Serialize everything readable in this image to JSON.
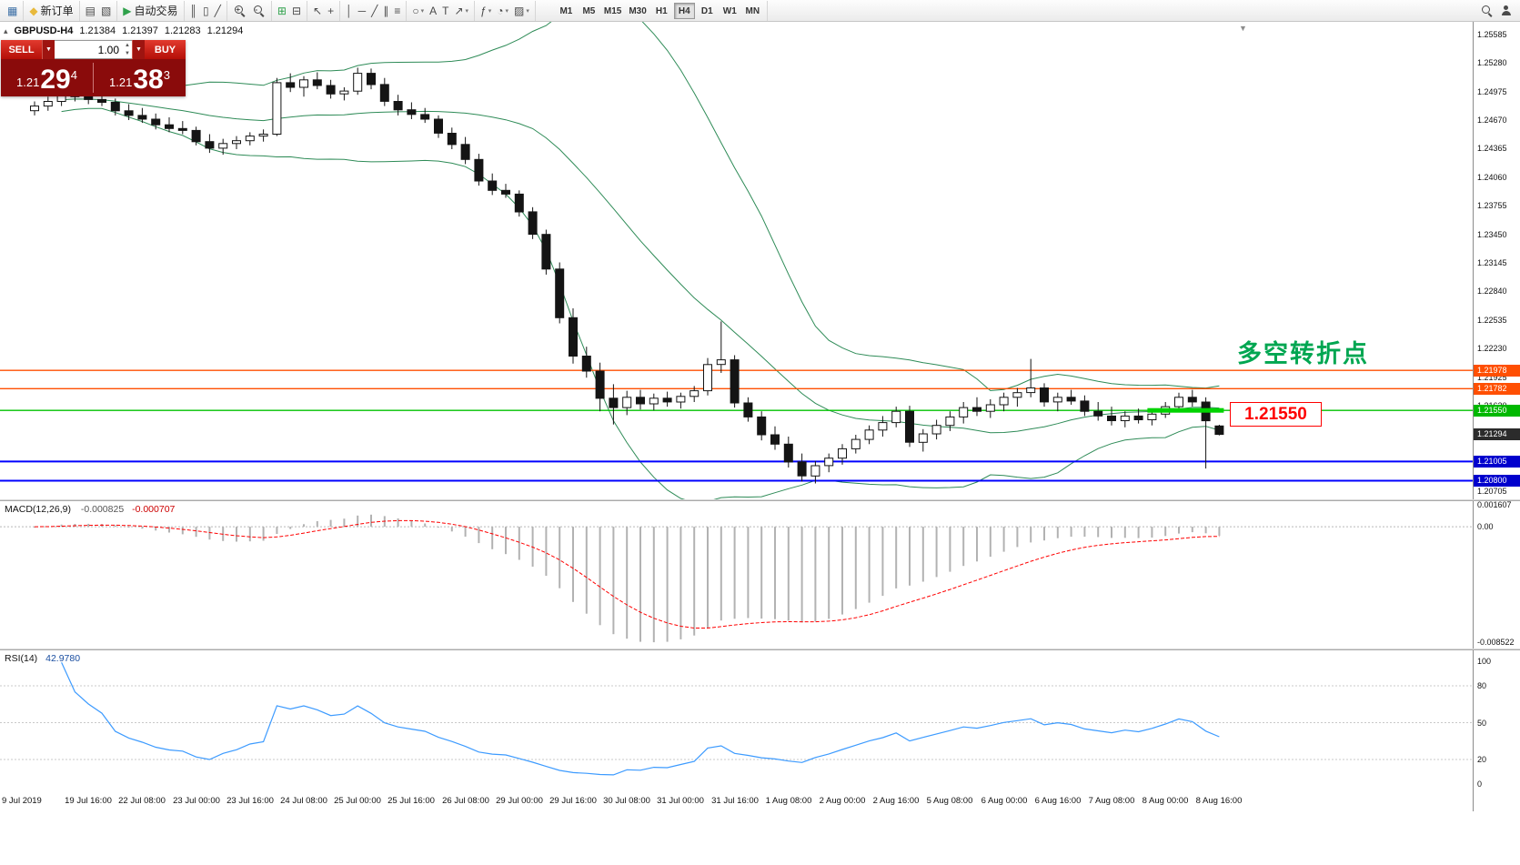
{
  "toolbar": {
    "groups": [
      {
        "items": [
          {
            "name": "terminal-icon",
            "glyph": "▦",
            "color": "#3a6ea5"
          }
        ]
      },
      {
        "items": [
          {
            "name": "new-order-button",
            "icon": "new-order-icon",
            "glyph": "◆",
            "color": "#e8b93c",
            "label": "新订单"
          }
        ]
      },
      {
        "items": [
          {
            "name": "chart-window-icon",
            "glyph": "▤"
          },
          {
            "name": "profiles-icon",
            "glyph": "▧"
          }
        ]
      },
      {
        "items": [
          {
            "name": "autotrading-button",
            "icon": "autotrading-icon",
            "glyph": "▶",
            "color": "#2fa14b",
            "label": "自动交易"
          }
        ]
      },
      {
        "items": [
          {
            "name": "chart-bars-icon",
            "glyph": "║"
          },
          {
            "name": "chart-candles-icon",
            "glyph": "▯"
          },
          {
            "name": "chart-line-icon",
            "glyph": "╱"
          }
        ]
      },
      {
        "items": [
          {
            "name": "zoom-in-icon",
            "css": "mag-plus",
            "sign": "+"
          },
          {
            "name": "zoom-out-icon",
            "css": "mag-minus",
            "sign": "-"
          }
        ]
      },
      {
        "items": [
          {
            "name": "tile-windows-icon",
            "glyph": "⊞",
            "color": "#2fa14b"
          },
          {
            "name": "cascade-windows-icon",
            "glyph": "⊟"
          }
        ]
      },
      {
        "items": [
          {
            "name": "cursor-icon",
            "glyph": "↖"
          },
          {
            "name": "crosshair-icon",
            "glyph": "+"
          }
        ]
      },
      {
        "items": [
          {
            "name": "vertical-line-icon",
            "glyph": "│"
          },
          {
            "name": "horizontal-line-icon",
            "glyph": "─"
          },
          {
            "name": "trendline-icon",
            "glyph": "╱"
          },
          {
            "name": "channel-icon",
            "glyph": "∥"
          },
          {
            "name": "fibonacci-icon",
            "glyph": "≡"
          }
        ]
      },
      {
        "items": [
          {
            "name": "shapes-icon",
            "glyph": "○",
            "caret": true
          },
          {
            "name": "text-icon",
            "glyph": "A"
          },
          {
            "name": "label-icon",
            "glyph": "T"
          },
          {
            "name": "arrows-icon",
            "glyph": "↗",
            "caret": true
          }
        ]
      },
      {
        "items": [
          {
            "name": "indicators-icon",
            "glyph": "ƒ",
            "caret": true
          },
          {
            "name": "periods-icon",
            "glyph": "◔",
            "caret": true
          },
          {
            "name": "templates-icon",
            "glyph": "▨",
            "caret": true
          }
        ]
      }
    ],
    "timeframes": {
      "active": "H4",
      "items": [
        "M1",
        "M5",
        "M15",
        "M30",
        "H1",
        "H4",
        "D1",
        "W1",
        "MN"
      ]
    },
    "right_items": [
      {
        "name": "search-icon",
        "css": "mag"
      },
      {
        "name": "community-icon",
        "css": "person"
      }
    ]
  },
  "chart_header": {
    "symbol": "GBPUSD-H4",
    "open": "1.21384",
    "high": "1.21397",
    "low": "1.21283",
    "close": "1.21294"
  },
  "trade_panel": {
    "sell_label": "SELL",
    "buy_label": "BUY",
    "volume": "1.00",
    "sell_price": {
      "prefix": "1.21",
      "big": "29",
      "sup": "4"
    },
    "buy_price": {
      "prefix": "1.21",
      "big": "38",
      "sup": "3"
    }
  },
  "chart_data": {
    "type": "candlestick",
    "symbol": "GBPUSD",
    "timeframe": "H4",
    "style": {
      "bull": "#ffffff",
      "bear": "#141414",
      "wick": "#141414",
      "bollinger": "#2e8b57",
      "background": "#ffffff"
    },
    "scale": {
      "price_top": 1.2568,
      "price_bottom": 1.2061
    },
    "price_ticks": [
      "1.25585",
      "1.25280",
      "1.24975",
      "1.24670",
      "1.24365",
      "1.24060",
      "1.23755",
      "1.23450",
      "1.23145",
      "1.22840",
      "1.22535",
      "1.22230",
      "1.21925",
      "1.21620",
      "1.21315",
      "1.21010",
      "1.20705"
    ],
    "candles": [
      [
        1.2475,
        1.2485,
        1.247,
        1.248
      ],
      [
        1.248,
        1.249,
        1.2475,
        1.2485
      ],
      [
        1.2485,
        1.25,
        1.248,
        1.2495
      ],
      [
        1.2495,
        1.2505,
        1.2485,
        1.249
      ],
      [
        1.249,
        1.2498,
        1.2482,
        1.2487
      ],
      [
        1.2487,
        1.2493,
        1.248,
        1.2484
      ],
      [
        1.2484,
        1.2488,
        1.247,
        1.2475
      ],
      [
        1.2475,
        1.2482,
        1.2465,
        1.247
      ],
      [
        1.247,
        1.2478,
        1.2462,
        1.2466
      ],
      [
        1.2466,
        1.2472,
        1.2455,
        1.246
      ],
      [
        1.246,
        1.2468,
        1.2452,
        1.2456
      ],
      [
        1.2456,
        1.2464,
        1.245,
        1.2454
      ],
      [
        1.2454,
        1.2458,
        1.2438,
        1.2442
      ],
      [
        1.2442,
        1.245,
        1.243,
        1.2435
      ],
      [
        1.2435,
        1.2445,
        1.2428,
        1.244
      ],
      [
        1.244,
        1.2448,
        1.2434,
        1.2443
      ],
      [
        1.2443,
        1.2452,
        1.2438,
        1.2448
      ],
      [
        1.2448,
        1.2455,
        1.2442,
        1.245
      ],
      [
        1.245,
        1.251,
        1.2448,
        1.2505
      ],
      [
        1.2505,
        1.2515,
        1.2495,
        1.25
      ],
      [
        1.25,
        1.2512,
        1.249,
        1.2508
      ],
      [
        1.2508,
        1.2516,
        1.2498,
        1.2502
      ],
      [
        1.2502,
        1.2508,
        1.2488,
        1.2493
      ],
      [
        1.2493,
        1.25,
        1.2486,
        1.2496
      ],
      [
        1.2496,
        1.2521,
        1.2492,
        1.2515
      ],
      [
        1.2515,
        1.252,
        1.2498,
        1.2503
      ],
      [
        1.2503,
        1.251,
        1.248,
        1.2485
      ],
      [
        1.2485,
        1.2492,
        1.247,
        1.2476
      ],
      [
        1.2476,
        1.2484,
        1.2466,
        1.2471
      ],
      [
        1.2471,
        1.2478,
        1.2462,
        1.2466
      ],
      [
        1.2466,
        1.247,
        1.2446,
        1.2451
      ],
      [
        1.2451,
        1.2457,
        1.2434,
        1.2439
      ],
      [
        1.2439,
        1.2447,
        1.2418,
        1.2423
      ],
      [
        1.2423,
        1.2429,
        1.2395,
        1.24
      ],
      [
        1.24,
        1.2408,
        1.2385,
        1.239
      ],
      [
        1.239,
        1.2397,
        1.2382,
        1.2386
      ],
      [
        1.2386,
        1.239,
        1.2362,
        1.2367
      ],
      [
        1.2367,
        1.2372,
        1.2338,
        1.2343
      ],
      [
        1.2343,
        1.2348,
        1.23,
        1.2306
      ],
      [
        1.2306,
        1.2313,
        1.2248,
        1.2254
      ],
      [
        1.2254,
        1.2264,
        1.2205,
        1.2213
      ],
      [
        1.2213,
        1.2223,
        1.219,
        1.2197
      ],
      [
        1.2197,
        1.2206,
        1.2154,
        1.2168
      ],
      [
        1.2168,
        1.2183,
        1.214,
        1.2158
      ],
      [
        1.2158,
        1.2176,
        1.215,
        1.2169
      ],
      [
        1.2169,
        1.2177,
        1.2156,
        1.2162
      ],
      [
        1.2162,
        1.2173,
        1.2155,
        1.2168
      ],
      [
        1.2168,
        1.2175,
        1.2159,
        1.2164
      ],
      [
        1.2164,
        1.2174,
        1.2157,
        1.217
      ],
      [
        1.217,
        1.2181,
        1.2164,
        1.2176
      ],
      [
        1.2176,
        1.2211,
        1.2171,
        1.2204
      ],
      [
        1.2204,
        1.225,
        1.2195,
        1.2209
      ],
      [
        1.2209,
        1.2214,
        1.2158,
        1.2163
      ],
      [
        1.2163,
        1.2169,
        1.2143,
        1.2148
      ],
      [
        1.2148,
        1.2154,
        1.2123,
        1.2129
      ],
      [
        1.2129,
        1.2138,
        1.2113,
        1.2119
      ],
      [
        1.2119,
        1.2127,
        1.2094,
        1.21
      ],
      [
        1.21,
        1.2109,
        1.2079,
        1.2085
      ],
      [
        1.2085,
        1.2101,
        1.2077,
        1.2096
      ],
      [
        1.2096,
        1.2109,
        1.2089,
        1.2104
      ],
      [
        1.2104,
        1.2119,
        1.2097,
        1.2114
      ],
      [
        1.2114,
        1.2129,
        1.2109,
        1.2124
      ],
      [
        1.2124,
        1.2139,
        1.2119,
        1.2134
      ],
      [
        1.2134,
        1.2149,
        1.2127,
        1.2142
      ],
      [
        1.2142,
        1.2159,
        1.2137,
        1.2154
      ],
      [
        1.2154,
        1.216,
        1.2116,
        1.2121
      ],
      [
        1.2121,
        1.2135,
        1.2111,
        1.213
      ],
      [
        1.213,
        1.2145,
        1.2124,
        1.2139
      ],
      [
        1.2139,
        1.2154,
        1.2133,
        1.2148
      ],
      [
        1.2148,
        1.2164,
        1.2141,
        1.2158
      ],
      [
        1.2158,
        1.2169,
        1.2149,
        1.2154
      ],
      [
        1.2154,
        1.2167,
        1.2147,
        1.2161
      ],
      [
        1.2161,
        1.2174,
        1.2154,
        1.2169
      ],
      [
        1.2169,
        1.2179,
        1.2159,
        1.2174
      ],
      [
        1.2174,
        1.221,
        1.2169,
        1.2179
      ],
      [
        1.2179,
        1.2184,
        1.2159,
        1.2164
      ],
      [
        1.2164,
        1.2174,
        1.2154,
        1.2169
      ],
      [
        1.2169,
        1.2177,
        1.2161,
        1.2165
      ],
      [
        1.2165,
        1.2171,
        1.2149,
        1.2154
      ],
      [
        1.2154,
        1.2164,
        1.2144,
        1.2149
      ],
      [
        1.2149,
        1.2159,
        1.2139,
        1.2144
      ],
      [
        1.2144,
        1.2154,
        1.2137,
        1.2149
      ],
      [
        1.2149,
        1.2157,
        1.2141,
        1.2145
      ],
      [
        1.2145,
        1.2155,
        1.2139,
        1.2151
      ],
      [
        1.2151,
        1.2164,
        1.2147,
        1.2159
      ],
      [
        1.2159,
        1.2174,
        1.2154,
        1.2169
      ],
      [
        1.2169,
        1.2177,
        1.2159,
        1.2164
      ],
      [
        1.2164,
        1.2169,
        1.2093,
        1.2144
      ],
      [
        1.21384,
        1.21397,
        1.21283,
        1.21294
      ]
    ],
    "time_labels": [
      [
        "9 Jul 2019",
        0
      ],
      [
        "19 Jul 16:00",
        4
      ],
      [
        "22 Jul 08:00",
        8
      ],
      [
        "23 Jul 00:00",
        12
      ],
      [
        "23 Jul 16:00",
        16
      ],
      [
        "24 Jul 08:00",
        20
      ],
      [
        "25 Jul 00:00",
        24
      ],
      [
        "25 Jul 16:00",
        28
      ],
      [
        "26 Jul 08:00",
        32
      ],
      [
        "29 Jul 00:00",
        36
      ],
      [
        "29 Jul 16:00",
        40
      ],
      [
        "30 Jul 08:00",
        44
      ],
      [
        "31 Jul 00:00",
        48
      ],
      [
        "31 Jul 16:00",
        52
      ],
      [
        "1 Aug 08:00",
        56
      ],
      [
        "2 Aug 00:00",
        60
      ],
      [
        "2 Aug 16:00",
        64
      ],
      [
        "5 Aug 08:00",
        68
      ],
      [
        "6 Aug 00:00",
        72
      ],
      [
        "6 Aug 16:00",
        76
      ],
      [
        "7 Aug 08:00",
        80
      ],
      [
        "8 Aug 00:00",
        84
      ],
      [
        "8 Aug 16:00",
        88
      ]
    ],
    "hlines": [
      {
        "value": 1.21978,
        "color": "#ff4f02",
        "width": 1.4,
        "label": "1.21978",
        "label_bg": "#ff4f02"
      },
      {
        "value": 1.21782,
        "color": "#ff4f02",
        "width": 1.4,
        "label": "1.21782",
        "label_bg": "#ff4f02"
      },
      {
        "value": 1.2155,
        "color": "#00c300",
        "width": 1.4,
        "label": "1.21550",
        "label_bg": "#00b800"
      },
      {
        "value": 1.21005,
        "color": "#0000ff",
        "width": 2,
        "label": "1.21005",
        "label_bg": "#0000cd"
      },
      {
        "value": 1.208,
        "color": "#0000ff",
        "width": 2,
        "label": "1.20800",
        "label_bg": "#0000cd"
      }
    ],
    "current_price": {
      "text": "1.21294",
      "value": 1.21294,
      "label_bg": "#2b2b2b"
    },
    "highlight_segment": {
      "value": 1.2155,
      "from": 83,
      "to": 88,
      "color": "#00d300",
      "thickness": 5
    },
    "annotations": [
      {
        "id": "turning-point",
        "text": "多空转折点",
        "color": "#00a651"
      },
      {
        "id": "price-callout",
        "text": "1.21550",
        "color": "#fe0000"
      }
    ],
    "indicators": {
      "bollinger": {
        "period": 20,
        "deviation": 2,
        "color": "#2e8b57"
      },
      "macd": {
        "label": "MACD(12,26,9)",
        "value1": "-0.000825",
        "value2": "-0.000707",
        "hist_color": "#b2b2b2",
        "signal_color": "#ff0000",
        "scale_ticks": [
          {
            "text": "0.001607",
            "value": 0.001607
          },
          {
            "text": "0.00",
            "value": 0.0
          },
          {
            "text": "-0.008522",
            "value": -0.008522
          }
        ],
        "scale_min": -0.008522
      },
      "rsi": {
        "label": "RSI(14)",
        "value_text": "42.9780",
        "color": "#3d9bff",
        "levels": [
          80,
          50,
          20
        ],
        "scale_ticks": [
          {
            "text": "100",
            "value": 100
          },
          {
            "text": "80",
            "value": 80
          },
          {
            "text": "50",
            "value": 50
          },
          {
            "text": "20",
            "value": 20
          },
          {
            "text": "0",
            "value": 0
          }
        ]
      }
    }
  }
}
